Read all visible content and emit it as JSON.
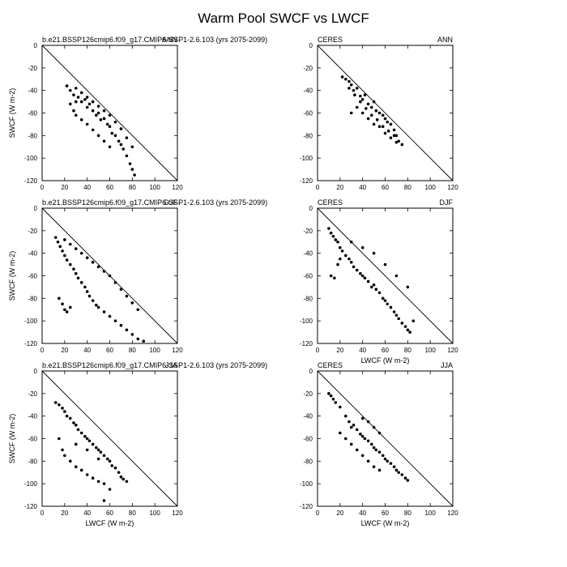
{
  "figure": {
    "title": "Warm Pool SWCF vs LWCF"
  },
  "chart_data": [
    {
      "type": "scatter",
      "left_label": "b.e21.BSSP126cmip6.f09_g17.CMIP6-SSP1-2.6.103 (yrs 2075-2099)",
      "right_label": "ANN",
      "xlabel": "",
      "ylabel": "SWCF (W m-2)",
      "xlim": [
        0,
        120
      ],
      "ylim": [
        -120,
        0
      ],
      "xticks": [
        0,
        20,
        40,
        60,
        80,
        100,
        120
      ],
      "yticks": [
        0,
        -20,
        -40,
        -60,
        -80,
        -100,
        -120
      ],
      "reference_line": "y = -x",
      "cloud_description": "dense band from (22,-36) to (82,-115)",
      "points": [
        [
          22,
          -36
        ],
        [
          25,
          -40
        ],
        [
          28,
          -44
        ],
        [
          30,
          -38
        ],
        [
          32,
          -46
        ],
        [
          35,
          -50
        ],
        [
          38,
          -48
        ],
        [
          40,
          -55
        ],
        [
          42,
          -52
        ],
        [
          45,
          -58
        ],
        [
          48,
          -62
        ],
        [
          50,
          -60
        ],
        [
          52,
          -66
        ],
        [
          55,
          -65
        ],
        [
          58,
          -70
        ],
        [
          60,
          -72
        ],
        [
          62,
          -78
        ],
        [
          65,
          -80
        ],
        [
          68,
          -85
        ],
        [
          70,
          -88
        ],
        [
          72,
          -92
        ],
        [
          75,
          -98
        ],
        [
          78,
          -105
        ],
        [
          80,
          -110
        ],
        [
          82,
          -115
        ],
        [
          25,
          -52
        ],
        [
          28,
          -58
        ],
        [
          30,
          -62
        ],
        [
          35,
          -66
        ],
        [
          40,
          -70
        ],
        [
          45,
          -75
        ],
        [
          50,
          -80
        ],
        [
          55,
          -85
        ],
        [
          60,
          -90
        ],
        [
          30,
          -50
        ],
        [
          35,
          -42
        ],
        [
          40,
          -46
        ],
        [
          45,
          -50
        ],
        [
          50,
          -54
        ],
        [
          55,
          -58
        ],
        [
          60,
          -62
        ],
        [
          65,
          -68
        ],
        [
          70,
          -74
        ],
        [
          75,
          -82
        ],
        [
          80,
          -90
        ]
      ]
    },
    {
      "type": "scatter",
      "left_label": "CERES",
      "right_label": "ANN",
      "xlabel": "",
      "ylabel": "",
      "xlim": [
        0,
        120
      ],
      "ylim": [
        -120,
        0
      ],
      "xticks": [
        0,
        20,
        40,
        60,
        80,
        100,
        120
      ],
      "yticks": [
        0,
        -20,
        -40,
        -60,
        -80,
        -100,
        -120
      ],
      "reference_line": "y = -x",
      "points": [
        [
          22,
          -28
        ],
        [
          25,
          -30
        ],
        [
          28,
          -32
        ],
        [
          30,
          -35
        ],
        [
          32,
          -40
        ],
        [
          35,
          -38
        ],
        [
          38,
          -45
        ],
        [
          40,
          -48
        ],
        [
          42,
          -44
        ],
        [
          45,
          -52
        ],
        [
          48,
          -55
        ],
        [
          50,
          -50
        ],
        [
          52,
          -58
        ],
        [
          55,
          -60
        ],
        [
          58,
          -62
        ],
        [
          60,
          -65
        ],
        [
          62,
          -68
        ],
        [
          65,
          -70
        ],
        [
          68,
          -75
        ],
        [
          70,
          -80
        ],
        [
          72,
          -85
        ],
        [
          75,
          -88
        ],
        [
          30,
          -60
        ],
        [
          35,
          -55
        ],
        [
          40,
          -60
        ],
        [
          45,
          -65
        ],
        [
          50,
          -70
        ],
        [
          55,
          -72
        ],
        [
          60,
          -78
        ],
        [
          65,
          -82
        ],
        [
          70,
          -86
        ],
        [
          28,
          -38
        ],
        [
          33,
          -44
        ],
        [
          38,
          -50
        ],
        [
          43,
          -56
        ],
        [
          48,
          -62
        ],
        [
          53,
          -66
        ],
        [
          58,
          -72
        ],
        [
          63,
          -76
        ],
        [
          68,
          -80
        ]
      ]
    },
    {
      "type": "scatter",
      "left_label": "b.e21.BSSP126cmip6.f09_g17.CMIP6-SSP1-2.6.103 (yrs 2075-2099)",
      "right_label": "DJF",
      "xlabel": "",
      "ylabel": "SWCF (W m-2)",
      "xlim": [
        0,
        120
      ],
      "ylim": [
        -120,
        0
      ],
      "xticks": [
        0,
        20,
        40,
        60,
        80,
        100,
        120
      ],
      "yticks": [
        0,
        -20,
        -40,
        -60,
        -80,
        -100,
        -120
      ],
      "reference_line": "y = -x",
      "points": [
        [
          12,
          -26
        ],
        [
          14,
          -30
        ],
        [
          16,
          -34
        ],
        [
          18,
          -38
        ],
        [
          20,
          -42
        ],
        [
          22,
          -46
        ],
        [
          25,
          -50
        ],
        [
          28,
          -54
        ],
        [
          30,
          -58
        ],
        [
          32,
          -62
        ],
        [
          35,
          -66
        ],
        [
          38,
          -70
        ],
        [
          40,
          -74
        ],
        [
          42,
          -78
        ],
        [
          45,
          -82
        ],
        [
          48,
          -86
        ],
        [
          50,
          -88
        ],
        [
          55,
          -92
        ],
        [
          60,
          -96
        ],
        [
          65,
          -100
        ],
        [
          70,
          -104
        ],
        [
          75,
          -108
        ],
        [
          80,
          -112
        ],
        [
          85,
          -116
        ],
        [
          90,
          -118
        ],
        [
          15,
          -80
        ],
        [
          18,
          -85
        ],
        [
          20,
          -90
        ],
        [
          22,
          -92
        ],
        [
          25,
          -88
        ],
        [
          20,
          -28
        ],
        [
          25,
          -32
        ],
        [
          30,
          -36
        ],
        [
          35,
          -40
        ],
        [
          40,
          -44
        ],
        [
          45,
          -48
        ],
        [
          50,
          -52
        ],
        [
          55,
          -56
        ],
        [
          60,
          -60
        ],
        [
          65,
          -66
        ],
        [
          70,
          -72
        ],
        [
          75,
          -78
        ],
        [
          80,
          -84
        ],
        [
          85,
          -90
        ]
      ]
    },
    {
      "type": "scatter",
      "left_label": "CERES",
      "right_label": "DJF",
      "xlabel": "LWCF (W m-2)",
      "ylabel": "",
      "xlim": [
        0,
        120
      ],
      "ylim": [
        -120,
        0
      ],
      "xticks": [
        0,
        20,
        40,
        60,
        80,
        100,
        120
      ],
      "yticks": [
        0,
        -20,
        -40,
        -60,
        -80,
        -100,
        -120
      ],
      "reference_line": "y = -x",
      "points": [
        [
          10,
          -18
        ],
        [
          12,
          -22
        ],
        [
          14,
          -25
        ],
        [
          16,
          -28
        ],
        [
          18,
          -30
        ],
        [
          20,
          -35
        ],
        [
          22,
          -38
        ],
        [
          25,
          -42
        ],
        [
          28,
          -45
        ],
        [
          30,
          -48
        ],
        [
          32,
          -52
        ],
        [
          35,
          -55
        ],
        [
          38,
          -58
        ],
        [
          40,
          -60
        ],
        [
          42,
          -62
        ],
        [
          45,
          -65
        ],
        [
          48,
          -70
        ],
        [
          50,
          -68
        ],
        [
          52,
          -72
        ],
        [
          55,
          -75
        ],
        [
          58,
          -80
        ],
        [
          60,
          -82
        ],
        [
          62,
          -85
        ],
        [
          65,
          -88
        ],
        [
          68,
          -92
        ],
        [
          70,
          -95
        ],
        [
          72,
          -98
        ],
        [
          75,
          -102
        ],
        [
          78,
          -105
        ],
        [
          80,
          -108
        ],
        [
          82,
          -110
        ],
        [
          85,
          -100
        ],
        [
          12,
          -60
        ],
        [
          15,
          -62
        ],
        [
          18,
          -50
        ],
        [
          20,
          -45
        ],
        [
          30,
          -30
        ],
        [
          40,
          -35
        ],
        [
          50,
          -40
        ],
        [
          60,
          -50
        ],
        [
          70,
          -60
        ],
        [
          80,
          -70
        ]
      ]
    },
    {
      "type": "scatter",
      "left_label": "b.e21.BSSP126cmip6.f09_g17.CMIP6-SSP1-2.6.103 (yrs 2075-2099)",
      "right_label": "JJA",
      "xlabel": "LWCF (W m-2)",
      "ylabel": "SWCF (W m-2)",
      "xlim": [
        0,
        120
      ],
      "ylim": [
        -120,
        0
      ],
      "xticks": [
        0,
        20,
        40,
        60,
        80,
        100,
        120
      ],
      "yticks": [
        0,
        -20,
        -40,
        -60,
        -80,
        -100,
        -120
      ],
      "reference_line": "y = -x",
      "points": [
        [
          12,
          -28
        ],
        [
          15,
          -30
        ],
        [
          18,
          -33
        ],
        [
          20,
          -36
        ],
        [
          22,
          -40
        ],
        [
          25,
          -42
        ],
        [
          28,
          -46
        ],
        [
          30,
          -48
        ],
        [
          32,
          -52
        ],
        [
          35,
          -55
        ],
        [
          38,
          -58
        ],
        [
          40,
          -60
        ],
        [
          42,
          -62
        ],
        [
          45,
          -65
        ],
        [
          48,
          -68
        ],
        [
          50,
          -70
        ],
        [
          52,
          -72
        ],
        [
          55,
          -75
        ],
        [
          58,
          -78
        ],
        [
          60,
          -80
        ],
        [
          62,
          -84
        ],
        [
          65,
          -86
        ],
        [
          68,
          -90
        ],
        [
          70,
          -94
        ],
        [
          72,
          -96
        ],
        [
          75,
          -98
        ],
        [
          15,
          -60
        ],
        [
          18,
          -70
        ],
        [
          20,
          -75
        ],
        [
          25,
          -80
        ],
        [
          30,
          -85
        ],
        [
          35,
          -88
        ],
        [
          40,
          -92
        ],
        [
          45,
          -95
        ],
        [
          50,
          -98
        ],
        [
          55,
          -100
        ],
        [
          60,
          -105
        ],
        [
          55,
          -115
        ],
        [
          30,
          -65
        ],
        [
          40,
          -70
        ],
        [
          50,
          -78
        ]
      ]
    },
    {
      "type": "scatter",
      "left_label": "CERES",
      "right_label": "JJA",
      "xlabel": "LWCF (W m-2)",
      "ylabel": "",
      "xlim": [
        0,
        120
      ],
      "ylim": [
        -120,
        0
      ],
      "xticks": [
        0,
        20,
        40,
        60,
        80,
        100,
        120
      ],
      "yticks": [
        0,
        -20,
        -40,
        -60,
        -80,
        -100,
        -120
      ],
      "reference_line": "y = -x",
      "points": [
        [
          10,
          -20
        ],
        [
          12,
          -22
        ],
        [
          14,
          -25
        ],
        [
          16,
          -28
        ],
        [
          20,
          -32
        ],
        [
          25,
          -40
        ],
        [
          28,
          -45
        ],
        [
          30,
          -50
        ],
        [
          32,
          -48
        ],
        [
          35,
          -52
        ],
        [
          38,
          -56
        ],
        [
          40,
          -58
        ],
        [
          42,
          -60
        ],
        [
          45,
          -62
        ],
        [
          48,
          -65
        ],
        [
          50,
          -68
        ],
        [
          52,
          -70
        ],
        [
          55,
          -72
        ],
        [
          58,
          -75
        ],
        [
          60,
          -78
        ],
        [
          62,
          -80
        ],
        [
          65,
          -82
        ],
        [
          68,
          -85
        ],
        [
          70,
          -88
        ],
        [
          72,
          -90
        ],
        [
          75,
          -92
        ],
        [
          78,
          -95
        ],
        [
          80,
          -97
        ],
        [
          20,
          -55
        ],
        [
          25,
          -60
        ],
        [
          30,
          -65
        ],
        [
          35,
          -70
        ],
        [
          40,
          -75
        ],
        [
          45,
          -80
        ],
        [
          50,
          -85
        ],
        [
          55,
          -88
        ],
        [
          40,
          -42
        ],
        [
          45,
          -45
        ],
        [
          50,
          -50
        ],
        [
          55,
          -55
        ]
      ]
    }
  ]
}
